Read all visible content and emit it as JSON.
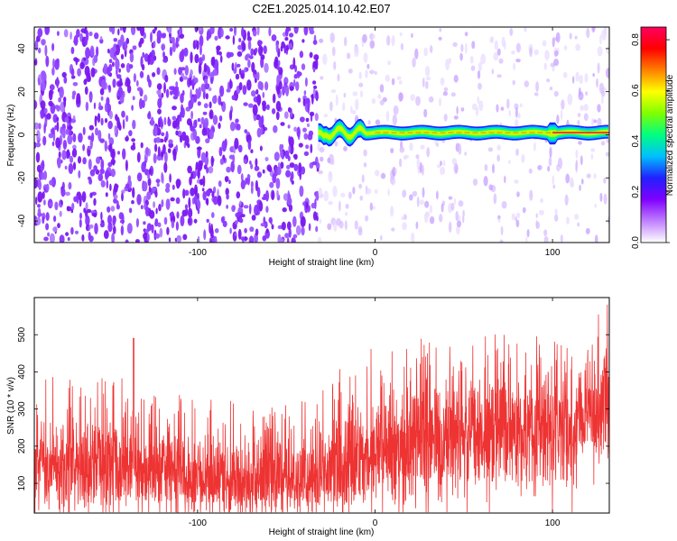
{
  "title": "C2E1.2025.014.10.42.E07",
  "chart_data": [
    {
      "type": "heatmap",
      "xlabel": "Height of straight line (km)",
      "ylabel": "Frequency (Hz)",
      "xlim": [
        -192,
        132
      ],
      "ylim": [
        -50,
        50
      ],
      "xticks": [
        -100,
        0,
        100
      ],
      "xtick_labels": [
        "-100",
        "0",
        "100"
      ],
      "yticks": [
        -40,
        -20,
        0,
        20,
        40
      ],
      "ytick_labels": [
        "-40",
        "-20",
        "0",
        "20",
        "40"
      ],
      "onset_x": -32,
      "signal_frequency": 1,
      "colorbar": {
        "label": "Normalized spectral amplitude",
        "range": [
          0,
          0.85
        ],
        "ticks": [
          0.0,
          0.2,
          0.4,
          0.6,
          0.8
        ],
        "tick_labels": [
          "0.0",
          "0.2",
          "0.4",
          "0.6",
          "0.8"
        ],
        "colors": [
          "#ffffff",
          "#c080ff",
          "#8000ff",
          "#2020ff",
          "#00c0ff",
          "#00ff80",
          "#80ff00",
          "#ffff00",
          "#ff8000",
          "#ff0000",
          "#ff0060"
        ]
      },
      "grid": false
    },
    {
      "type": "line",
      "xlabel": "Height of straight line (km)",
      "ylabel": "SNR (10 * v/v)",
      "xlim": [
        -192,
        132
      ],
      "ylim": [
        20,
        600
      ],
      "xticks": [
        -100,
        0,
        100
      ],
      "xtick_labels": [
        "-100",
        "0",
        "100"
      ],
      "yticks": [
        100,
        200,
        300,
        400,
        500
      ],
      "ytick_labels": [
        "100",
        "200",
        "300",
        "400",
        "500"
      ],
      "series_color": "#ee3333",
      "envelope": {
        "x": [
          -192,
          -170,
          -150,
          -130,
          -110,
          -90,
          -75,
          -60,
          -45,
          -30,
          -20,
          -10,
          0,
          20,
          40,
          60,
          80,
          100,
          112,
          120,
          132
        ],
        "low": [
          55,
          50,
          48,
          45,
          45,
          42,
          40,
          42,
          45,
          48,
          55,
          60,
          70,
          80,
          90,
          95,
          100,
          100,
          110,
          150,
          180
        ],
        "mean": [
          150,
          150,
          145,
          140,
          130,
          120,
          115,
          115,
          120,
          130,
          150,
          170,
          185,
          205,
          225,
          240,
          250,
          250,
          260,
          300,
          340
        ],
        "high": [
          350,
          360,
          350,
          330,
          310,
          300,
          290,
          285,
          290,
          320,
          390,
          420,
          430,
          440,
          450,
          460,
          465,
          470,
          480,
          530,
          560
        ]
      },
      "grid": false
    }
  ]
}
